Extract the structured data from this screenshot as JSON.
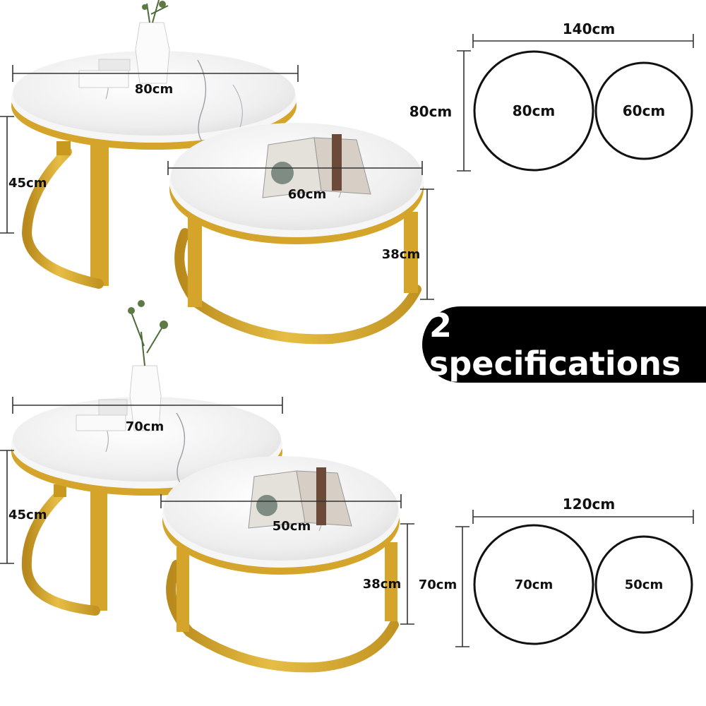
{
  "badge": {
    "text": "2 specifications"
  },
  "spec1": {
    "large_diameter": "80cm",
    "small_diameter": "60cm",
    "large_height": "45cm",
    "small_height": "38cm",
    "plan_width": "140cm",
    "plan_depth": "80cm",
    "plan_large": "80cm",
    "plan_small": "60cm"
  },
  "spec2": {
    "large_diameter": "70cm",
    "small_diameter": "50cm",
    "large_height": "45cm",
    "small_height": "38cm",
    "plan_width": "120cm",
    "plan_depth": "70cm",
    "plan_large": "70cm",
    "plan_small": "50cm"
  },
  "colors": {
    "gold": "#d4a52a",
    "gold_dark": "#b8891c",
    "marble": "#f1f1f1",
    "badge_bg": "#000000"
  }
}
